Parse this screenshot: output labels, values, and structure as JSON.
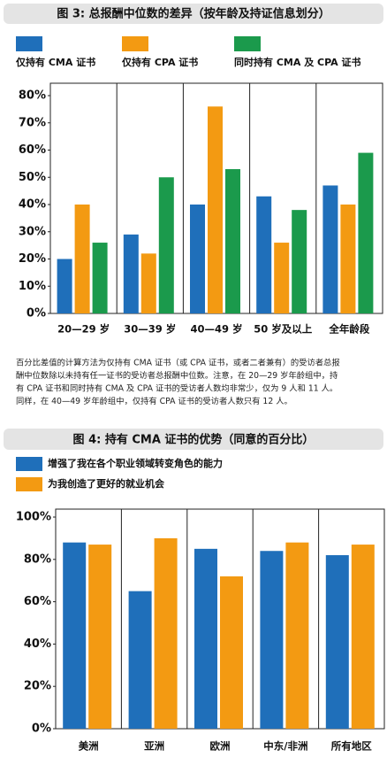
{
  "chart_data": [
    {
      "type": "bar",
      "title": "图 3: 总报酬中位数的差异（按年龄及持证信息划分）",
      "categories": [
        "20—29 岁",
        "30—39 岁",
        "40—49 岁",
        "50 岁及以上",
        "全年龄段"
      ],
      "series": [
        {
          "name": "仅持有 CMA 证书",
          "color": "#1f6fba",
          "values": [
            20,
            29,
            40,
            43,
            47
          ]
        },
        {
          "name": "仅持有 CPA 证书",
          "color": "#f39a12",
          "values": [
            40,
            22,
            76,
            26,
            40
          ]
        },
        {
          "name": "同时持有 CMA 及 CPA 证书",
          "color": "#1b9a4c",
          "values": [
            26,
            50,
            53,
            38,
            59
          ]
        }
      ],
      "ylim": [
        0,
        80
      ],
      "yticks": [
        {
          "value": 0,
          "label": "0%"
        },
        {
          "value": 10,
          "label": "10%"
        },
        {
          "value": 20,
          "label": "20%"
        },
        {
          "value": 30,
          "label": "30%"
        },
        {
          "value": 40,
          "label": "40%"
        },
        {
          "value": 50,
          "label": "50%"
        },
        {
          "value": 60,
          "label": "60%"
        },
        {
          "value": 70,
          "label": "70%"
        },
        {
          "value": 80,
          "label": "80%"
        }
      ],
      "grid": false
    },
    {
      "type": "bar",
      "title": "图 4: 持有 CMA 证书的优势（同意的百分比）",
      "categories": [
        "美洲",
        "亚洲",
        "欧洲",
        "中东/非洲",
        "所有地区"
      ],
      "series": [
        {
          "name": "增强了我在各个职业领域转变角色的能力",
          "color": "#1f6fba",
          "values": [
            88,
            65,
            85,
            84,
            82
          ]
        },
        {
          "name": "为我创造了更好的就业机会",
          "color": "#f39a12",
          "values": [
            87,
            90,
            72,
            88,
            87
          ]
        }
      ],
      "ylim": [
        0,
        100
      ],
      "yticks": [
        {
          "value": 0,
          "label": "0%"
        },
        {
          "value": 20,
          "label": "20%"
        },
        {
          "value": 40,
          "label": "40%"
        },
        {
          "value": 60,
          "label": "60%"
        },
        {
          "value": 80,
          "label": "80%"
        },
        {
          "value": 100,
          "label": "100%"
        }
      ],
      "grid": false
    }
  ],
  "note": [
    "百分比差值的计算方法为仅持有 CMA 证书（或 CPA 证书，或者二者兼有）的受访者总报",
    "酬中位数除以未持有任一证书的受访者总报酬中位数。注意，在 20—29 岁年龄组中，持",
    "有 CPA 证书和同时持有 CMA 及 CPA 证书的受访者人数均非常少，仅为 9 人和 11 人。",
    "同样，在 40—49 岁年龄组中，仅持有 CPA 证书的受访者人数只有 12 人。"
  ]
}
